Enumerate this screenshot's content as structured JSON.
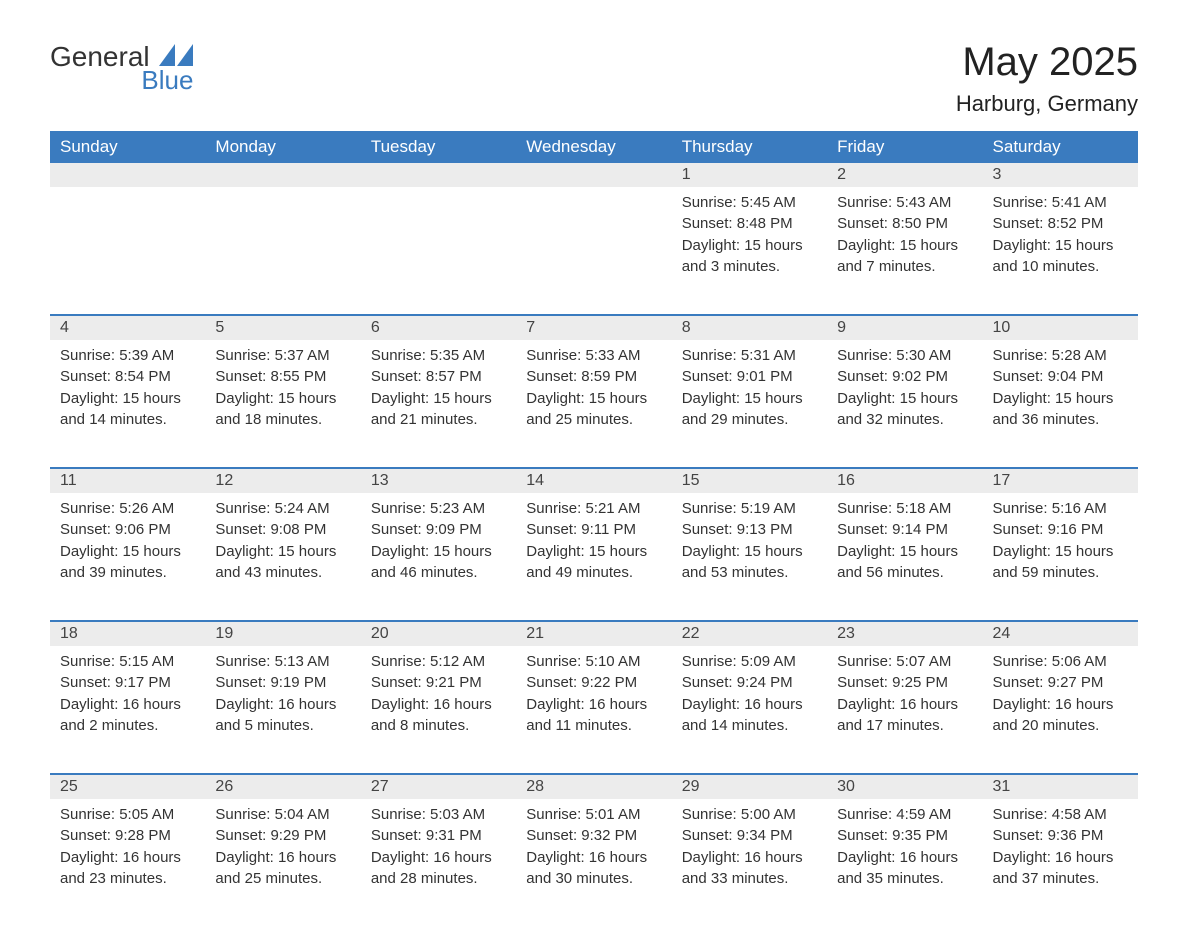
{
  "brand": {
    "line1": "General",
    "line2": "Blue",
    "accent": "#3a7bbf"
  },
  "title": "May 2025",
  "location": "Harburg, Germany",
  "weekdays": [
    "Sunday",
    "Monday",
    "Tuesday",
    "Wednesday",
    "Thursday",
    "Friday",
    "Saturday"
  ],
  "colors": {
    "header_bg": "#3a7bbf",
    "header_text": "#ffffff",
    "daynum_bg": "#ececec",
    "row_border": "#3a7bbf",
    "text": "#333333",
    "page_bg": "#ffffff"
  },
  "weeks": [
    [
      null,
      null,
      null,
      null,
      {
        "n": "1",
        "sunrise": "Sunrise: 5:45 AM",
        "sunset": "Sunset: 8:48 PM",
        "dl1": "Daylight: 15 hours",
        "dl2": "and 3 minutes."
      },
      {
        "n": "2",
        "sunrise": "Sunrise: 5:43 AM",
        "sunset": "Sunset: 8:50 PM",
        "dl1": "Daylight: 15 hours",
        "dl2": "and 7 minutes."
      },
      {
        "n": "3",
        "sunrise": "Sunrise: 5:41 AM",
        "sunset": "Sunset: 8:52 PM",
        "dl1": "Daylight: 15 hours",
        "dl2": "and 10 minutes."
      }
    ],
    [
      {
        "n": "4",
        "sunrise": "Sunrise: 5:39 AM",
        "sunset": "Sunset: 8:54 PM",
        "dl1": "Daylight: 15 hours",
        "dl2": "and 14 minutes."
      },
      {
        "n": "5",
        "sunrise": "Sunrise: 5:37 AM",
        "sunset": "Sunset: 8:55 PM",
        "dl1": "Daylight: 15 hours",
        "dl2": "and 18 minutes."
      },
      {
        "n": "6",
        "sunrise": "Sunrise: 5:35 AM",
        "sunset": "Sunset: 8:57 PM",
        "dl1": "Daylight: 15 hours",
        "dl2": "and 21 minutes."
      },
      {
        "n": "7",
        "sunrise": "Sunrise: 5:33 AM",
        "sunset": "Sunset: 8:59 PM",
        "dl1": "Daylight: 15 hours",
        "dl2": "and 25 minutes."
      },
      {
        "n": "8",
        "sunrise": "Sunrise: 5:31 AM",
        "sunset": "Sunset: 9:01 PM",
        "dl1": "Daylight: 15 hours",
        "dl2": "and 29 minutes."
      },
      {
        "n": "9",
        "sunrise": "Sunrise: 5:30 AM",
        "sunset": "Sunset: 9:02 PM",
        "dl1": "Daylight: 15 hours",
        "dl2": "and 32 minutes."
      },
      {
        "n": "10",
        "sunrise": "Sunrise: 5:28 AM",
        "sunset": "Sunset: 9:04 PM",
        "dl1": "Daylight: 15 hours",
        "dl2": "and 36 minutes."
      }
    ],
    [
      {
        "n": "11",
        "sunrise": "Sunrise: 5:26 AM",
        "sunset": "Sunset: 9:06 PM",
        "dl1": "Daylight: 15 hours",
        "dl2": "and 39 minutes."
      },
      {
        "n": "12",
        "sunrise": "Sunrise: 5:24 AM",
        "sunset": "Sunset: 9:08 PM",
        "dl1": "Daylight: 15 hours",
        "dl2": "and 43 minutes."
      },
      {
        "n": "13",
        "sunrise": "Sunrise: 5:23 AM",
        "sunset": "Sunset: 9:09 PM",
        "dl1": "Daylight: 15 hours",
        "dl2": "and 46 minutes."
      },
      {
        "n": "14",
        "sunrise": "Sunrise: 5:21 AM",
        "sunset": "Sunset: 9:11 PM",
        "dl1": "Daylight: 15 hours",
        "dl2": "and 49 minutes."
      },
      {
        "n": "15",
        "sunrise": "Sunrise: 5:19 AM",
        "sunset": "Sunset: 9:13 PM",
        "dl1": "Daylight: 15 hours",
        "dl2": "and 53 minutes."
      },
      {
        "n": "16",
        "sunrise": "Sunrise: 5:18 AM",
        "sunset": "Sunset: 9:14 PM",
        "dl1": "Daylight: 15 hours",
        "dl2": "and 56 minutes."
      },
      {
        "n": "17",
        "sunrise": "Sunrise: 5:16 AM",
        "sunset": "Sunset: 9:16 PM",
        "dl1": "Daylight: 15 hours",
        "dl2": "and 59 minutes."
      }
    ],
    [
      {
        "n": "18",
        "sunrise": "Sunrise: 5:15 AM",
        "sunset": "Sunset: 9:17 PM",
        "dl1": "Daylight: 16 hours",
        "dl2": "and 2 minutes."
      },
      {
        "n": "19",
        "sunrise": "Sunrise: 5:13 AM",
        "sunset": "Sunset: 9:19 PM",
        "dl1": "Daylight: 16 hours",
        "dl2": "and 5 minutes."
      },
      {
        "n": "20",
        "sunrise": "Sunrise: 5:12 AM",
        "sunset": "Sunset: 9:21 PM",
        "dl1": "Daylight: 16 hours",
        "dl2": "and 8 minutes."
      },
      {
        "n": "21",
        "sunrise": "Sunrise: 5:10 AM",
        "sunset": "Sunset: 9:22 PM",
        "dl1": "Daylight: 16 hours",
        "dl2": "and 11 minutes."
      },
      {
        "n": "22",
        "sunrise": "Sunrise: 5:09 AM",
        "sunset": "Sunset: 9:24 PM",
        "dl1": "Daylight: 16 hours",
        "dl2": "and 14 minutes."
      },
      {
        "n": "23",
        "sunrise": "Sunrise: 5:07 AM",
        "sunset": "Sunset: 9:25 PM",
        "dl1": "Daylight: 16 hours",
        "dl2": "and 17 minutes."
      },
      {
        "n": "24",
        "sunrise": "Sunrise: 5:06 AM",
        "sunset": "Sunset: 9:27 PM",
        "dl1": "Daylight: 16 hours",
        "dl2": "and 20 minutes."
      }
    ],
    [
      {
        "n": "25",
        "sunrise": "Sunrise: 5:05 AM",
        "sunset": "Sunset: 9:28 PM",
        "dl1": "Daylight: 16 hours",
        "dl2": "and 23 minutes."
      },
      {
        "n": "26",
        "sunrise": "Sunrise: 5:04 AM",
        "sunset": "Sunset: 9:29 PM",
        "dl1": "Daylight: 16 hours",
        "dl2": "and 25 minutes."
      },
      {
        "n": "27",
        "sunrise": "Sunrise: 5:03 AM",
        "sunset": "Sunset: 9:31 PM",
        "dl1": "Daylight: 16 hours",
        "dl2": "and 28 minutes."
      },
      {
        "n": "28",
        "sunrise": "Sunrise: 5:01 AM",
        "sunset": "Sunset: 9:32 PM",
        "dl1": "Daylight: 16 hours",
        "dl2": "and 30 minutes."
      },
      {
        "n": "29",
        "sunrise": "Sunrise: 5:00 AM",
        "sunset": "Sunset: 9:34 PM",
        "dl1": "Daylight: 16 hours",
        "dl2": "and 33 minutes."
      },
      {
        "n": "30",
        "sunrise": "Sunrise: 4:59 AM",
        "sunset": "Sunset: 9:35 PM",
        "dl1": "Daylight: 16 hours",
        "dl2": "and 35 minutes."
      },
      {
        "n": "31",
        "sunrise": "Sunrise: 4:58 AM",
        "sunset": "Sunset: 9:36 PM",
        "dl1": "Daylight: 16 hours",
        "dl2": "and 37 minutes."
      }
    ]
  ]
}
